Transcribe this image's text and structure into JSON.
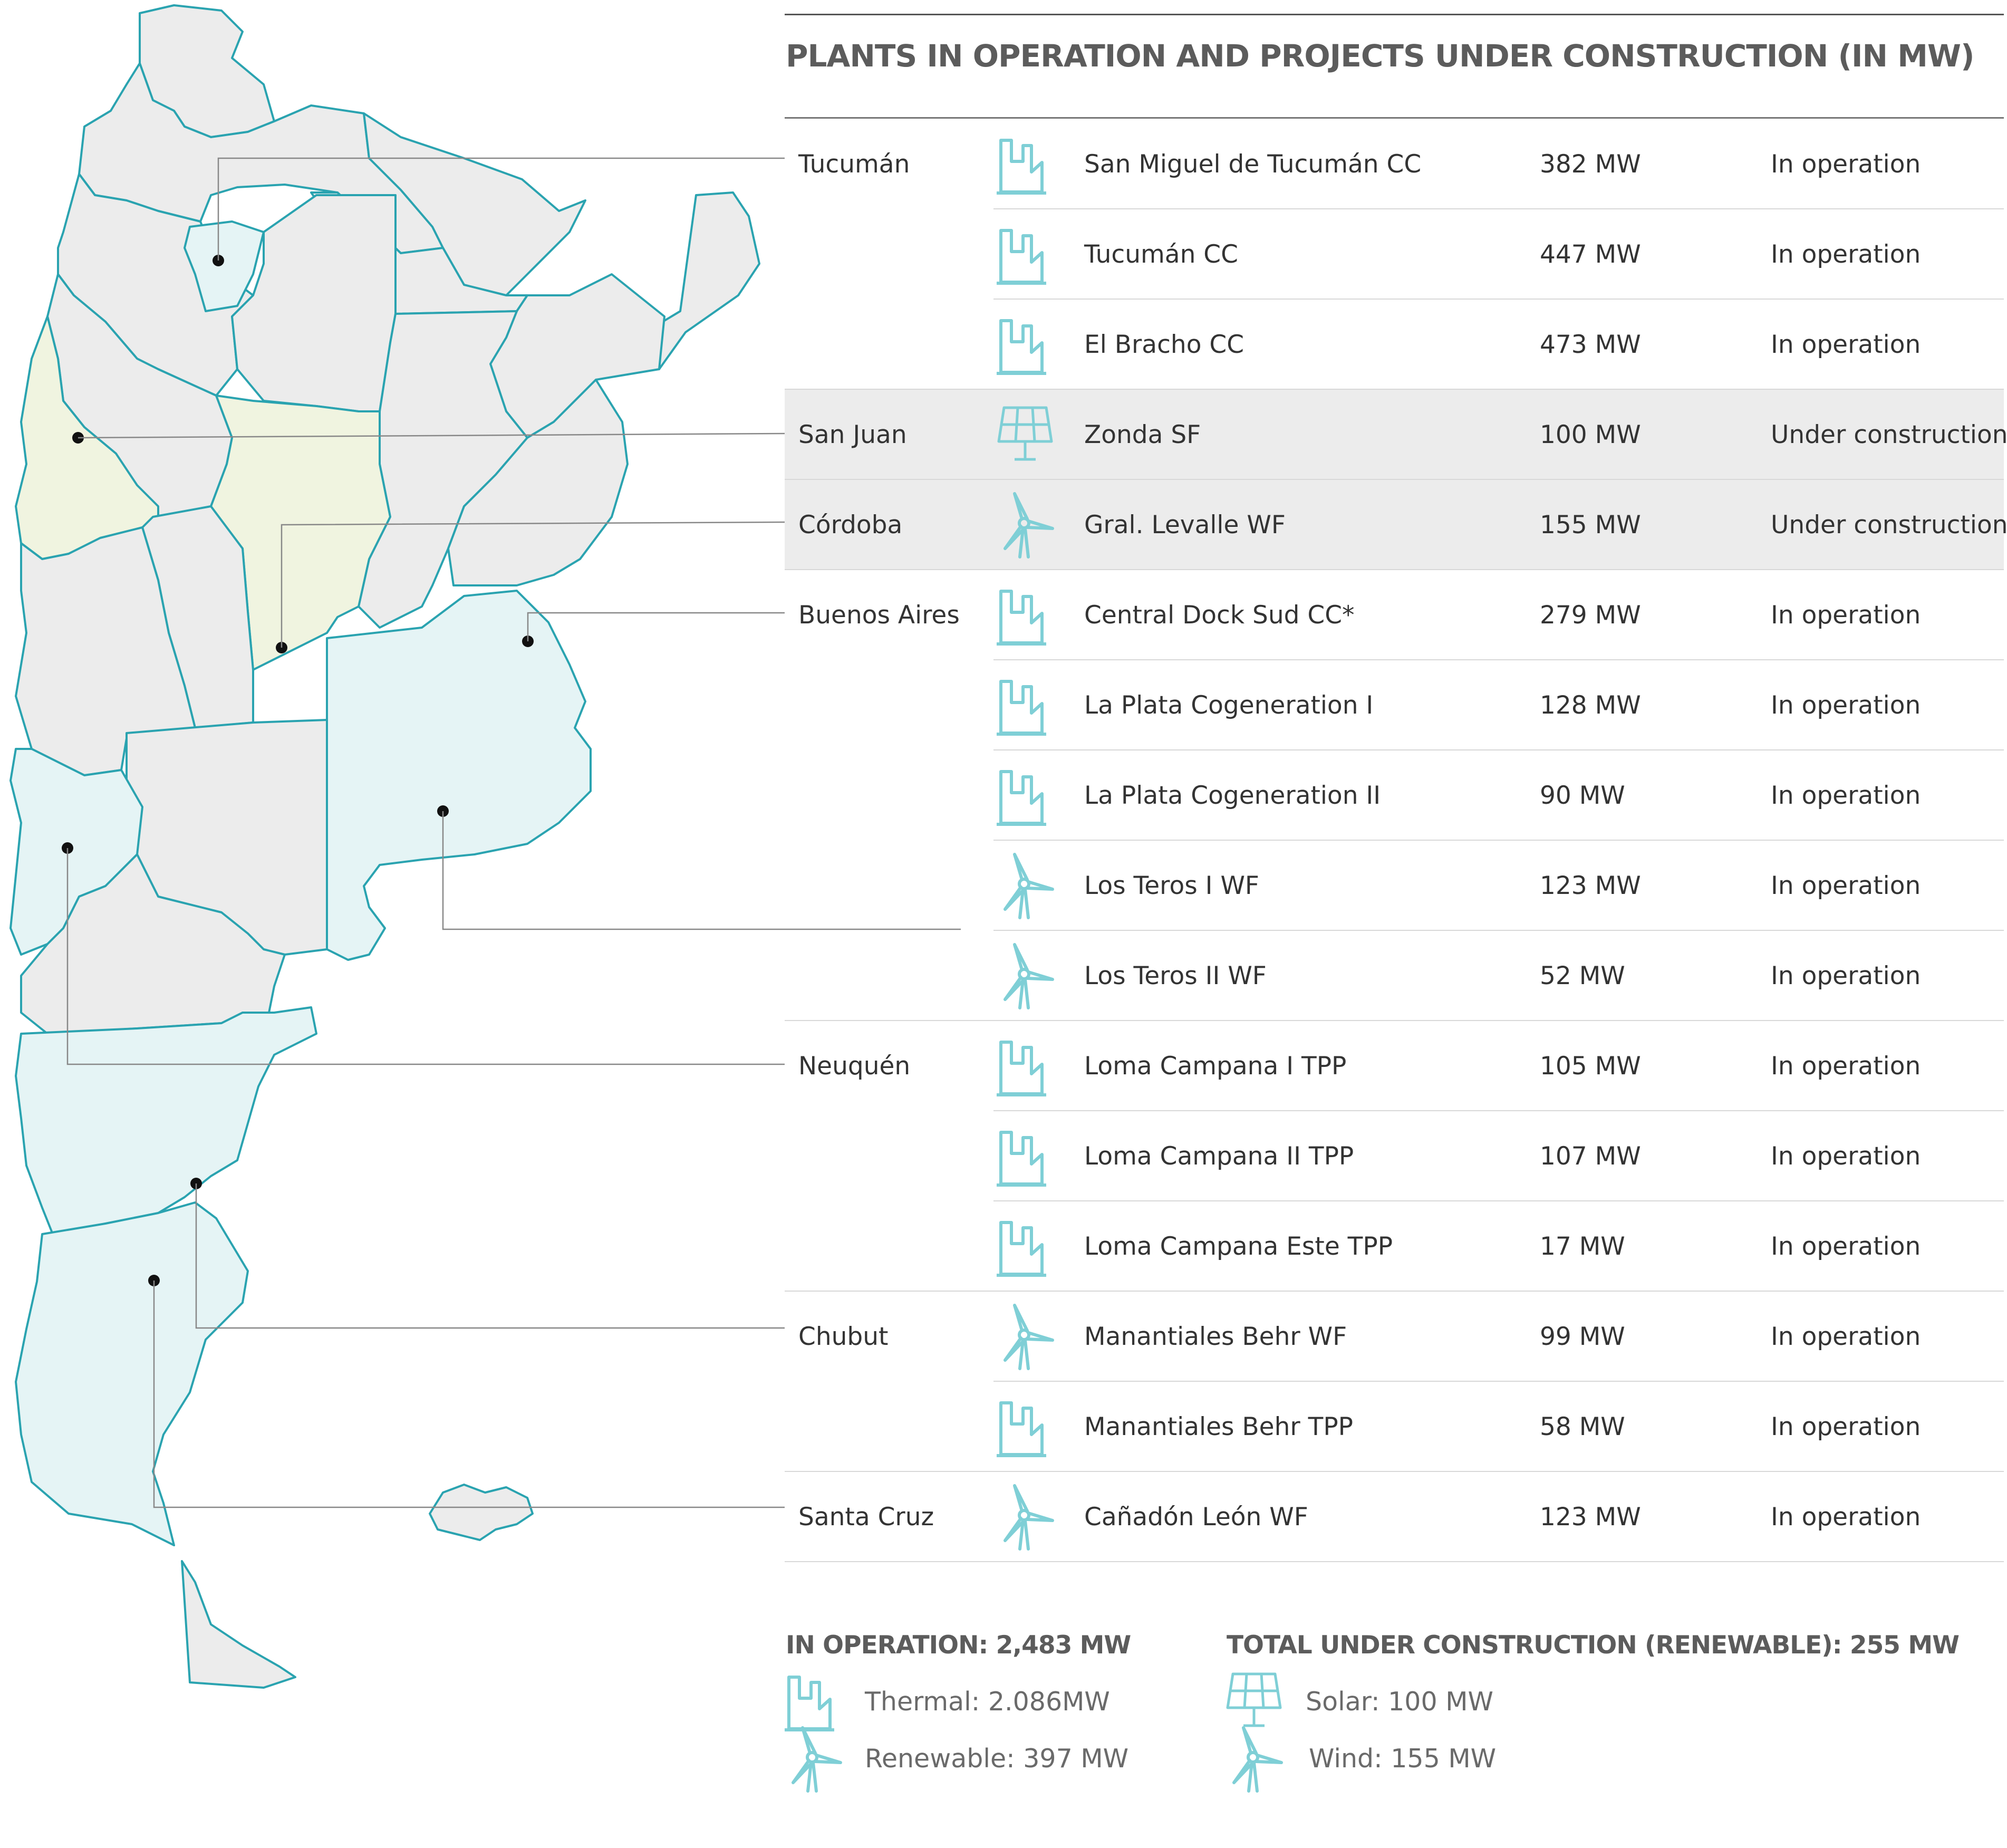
{
  "title": "PLANTS IN OPERATION AND PROJECTS UNDER CONSTRUCTION (IN MW)",
  "colors": {
    "accent": "#2aa3b0",
    "icon": "#7fcfd6",
    "province_default": "#ececec",
    "province_teal": "#e5f4f5",
    "province_green": "#f0f4e0",
    "highlight_row": "#ececec"
  },
  "rows": [
    {
      "province": "Tucumán",
      "icon": "thermal-icon",
      "plant": "San Miguel de Tucumán CC",
      "mw": "382 MW",
      "status": "In operation"
    },
    {
      "province": "",
      "icon": "thermal-icon",
      "plant": "Tucumán CC",
      "mw": "447 MW",
      "status": "In operation"
    },
    {
      "province": "",
      "icon": "thermal-icon",
      "plant": "El Bracho CC",
      "mw": "473 MW",
      "status": "In operation"
    },
    {
      "province": "San Juan",
      "icon": "solar-icon",
      "plant": "Zonda SF",
      "mw": "100 MW",
      "status": "Under construction"
    },
    {
      "province": "Córdoba",
      "icon": "wind-icon",
      "plant": "Gral. Levalle WF",
      "mw": "155 MW",
      "status": "Under construction"
    },
    {
      "province": "Buenos Aires",
      "icon": "thermal-icon",
      "plant": "Central Dock Sud CC*",
      "mw": "279 MW",
      "status": "In operation"
    },
    {
      "province": "",
      "icon": "thermal-icon",
      "plant": "La Plata Cogeneration I",
      "mw": "128 MW",
      "status": "In operation"
    },
    {
      "province": "",
      "icon": "thermal-icon",
      "plant": "La Plata Cogeneration II",
      "mw": "90 MW",
      "status": "In operation"
    },
    {
      "province": "",
      "icon": "wind-icon",
      "plant": "Los Teros I WF",
      "mw": "123 MW",
      "status": "In operation"
    },
    {
      "province": "",
      "icon": "wind-icon",
      "plant": "Los Teros II WF",
      "mw": "52 MW",
      "status": "In operation"
    },
    {
      "province": "Neuquén",
      "icon": "thermal-icon",
      "plant": "Loma Campana I TPP",
      "mw": "105 MW",
      "status": "In operation"
    },
    {
      "province": "",
      "icon": "thermal-icon",
      "plant": "Loma Campana II TPP",
      "mw": "107 MW",
      "status": "In operation"
    },
    {
      "province": "",
      "icon": "thermal-icon",
      "plant": "Loma Campana Este TPP",
      "mw": "17 MW",
      "status": "In operation"
    },
    {
      "province": "Chubut",
      "icon": "wind-icon",
      "plant": "Manantiales Behr WF",
      "mw": "99 MW",
      "status": "In operation"
    },
    {
      "province": "",
      "icon": "thermal-icon",
      "plant": "Manantiales Behr TPP",
      "mw": "58 MW",
      "status": "In operation"
    },
    {
      "province": "Santa Cruz",
      "icon": "wind-icon",
      "plant": "Cañadón León WF",
      "mw": "123 MW",
      "status": "In operation"
    }
  ],
  "summary": {
    "in_operation": {
      "heading": "IN OPERATION: 2,483 MW",
      "thermal": "Thermal: 2.086MW",
      "renewable": "Renewable: 397 MW"
    },
    "under_construction": {
      "heading": "TOTAL UNDER CONSTRUCTION (RENEWABLE): 255 MW",
      "solar": "Solar: 100 MW",
      "wind": "Wind: 155 MW"
    }
  }
}
